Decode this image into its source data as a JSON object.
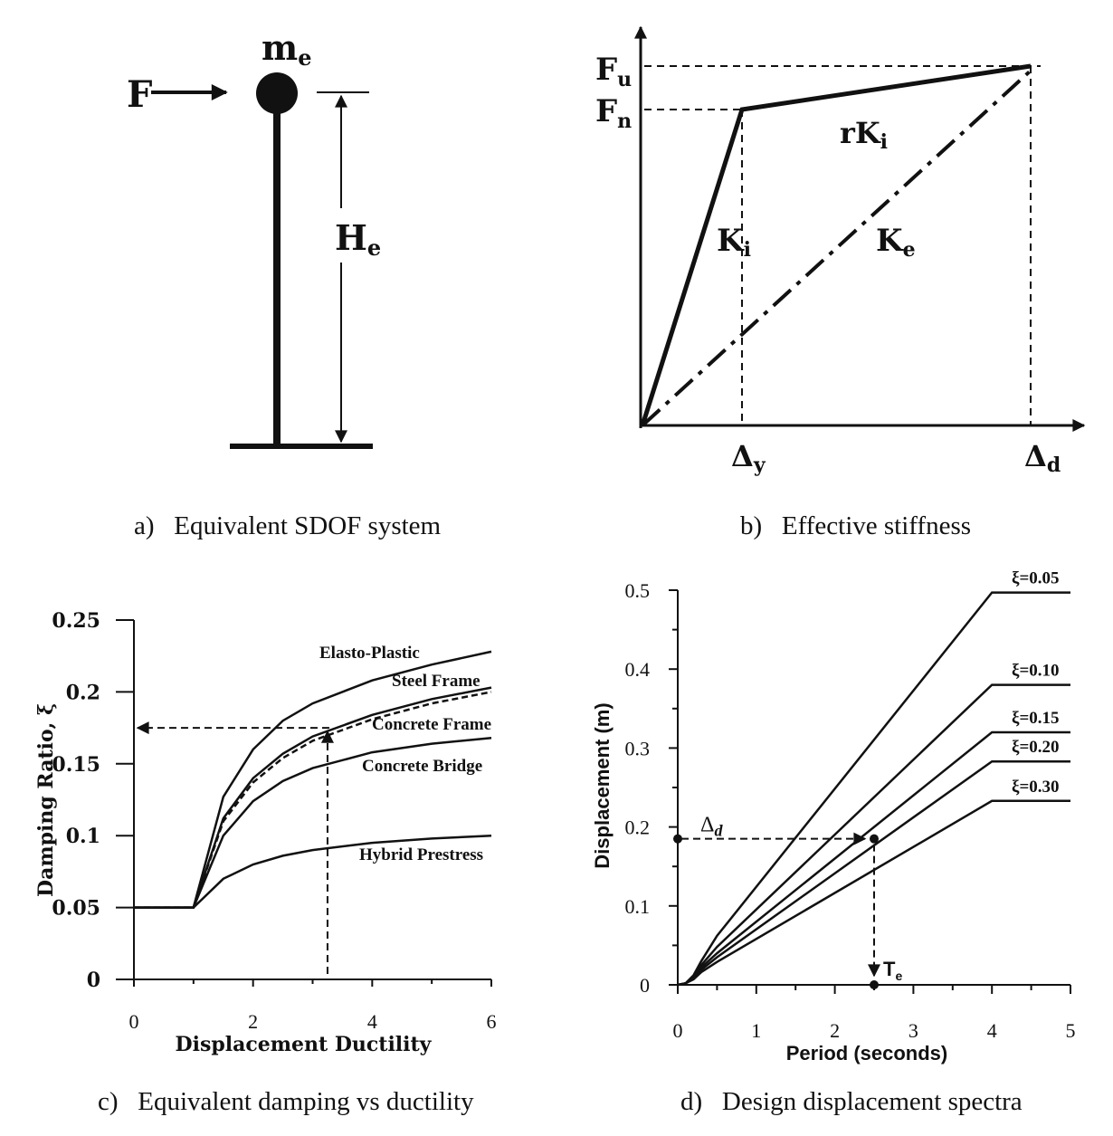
{
  "panel_a": {
    "caption": "a)  Equivalent SDOF system",
    "mass_label": "m",
    "mass_sub": "e",
    "force_label": "F",
    "height_label": "H",
    "height_sub": "e"
  },
  "panel_b": {
    "caption": "b)  Effective stiffness",
    "fu": "F",
    "fu_sub": "u",
    "fn": "F",
    "fn_sub": "n",
    "rki": "rK",
    "rki_sub": "i",
    "ki": "K",
    "ki_sub": "i",
    "ke": "K",
    "ke_sub": "e",
    "dy": "Δ",
    "dy_sub": "y",
    "dd": "Δ",
    "dd_sub": "d"
  },
  "chart_data": [
    {
      "type": "line",
      "caption": "c)  Equivalent damping vs ductility",
      "xlabel": "Displacement Ductility",
      "ylabel": "Damping Ratio, ξ",
      "xlim": [
        0,
        6
      ],
      "ylim": [
        0,
        0.25
      ],
      "xticks": [
        0,
        2,
        4,
        6
      ],
      "yticks": [
        "0",
        "0.05",
        "0.1",
        "0.15",
        "0.2",
        "0.25"
      ],
      "series": [
        {
          "name": "Elasto-Plastic",
          "x": [
            0,
            1,
            1.5,
            2,
            2.5,
            3,
            4,
            5,
            6
          ],
          "y": [
            0.05,
            0.05,
            0.127,
            0.16,
            0.18,
            0.192,
            0.208,
            0.219,
            0.228
          ]
        },
        {
          "name": "Steel Frame",
          "x": [
            0,
            1,
            1.5,
            2,
            2.5,
            3,
            4,
            5,
            6
          ],
          "y": [
            0.05,
            0.05,
            0.112,
            0.14,
            0.157,
            0.169,
            0.184,
            0.195,
            0.203
          ]
        },
        {
          "name": "Concrete Frame",
          "dashed": true,
          "x": [
            0,
            1,
            1.5,
            2,
            2.5,
            3,
            4,
            5,
            6
          ],
          "y": [
            0.05,
            0.05,
            0.11,
            0.137,
            0.154,
            0.166,
            0.181,
            0.192,
            0.2
          ]
        },
        {
          "name": "Concrete Bridge",
          "x": [
            0,
            1,
            1.5,
            2,
            2.5,
            3,
            4,
            5,
            6
          ],
          "y": [
            0.05,
            0.05,
            0.1,
            0.124,
            0.138,
            0.147,
            0.158,
            0.164,
            0.168
          ]
        },
        {
          "name": "Hybrid Prestress",
          "x": [
            0,
            1,
            1.5,
            2,
            2.5,
            3,
            4,
            5,
            6
          ],
          "y": [
            0.05,
            0.05,
            0.07,
            0.08,
            0.086,
            0.09,
            0.095,
            0.098,
            0.1
          ]
        }
      ],
      "annotation": {
        "ductility": 3.25,
        "damping": 0.175
      }
    },
    {
      "type": "line",
      "caption": "d)  Design displacement spectra",
      "xlabel": "Period (seconds)",
      "ylabel": "Displacement (m)",
      "xlim": [
        0,
        5
      ],
      "ylim": [
        0,
        0.5
      ],
      "xticks": [
        0,
        1,
        2,
        3,
        4,
        5
      ],
      "yticks": [
        "0",
        "0.1",
        "0.2",
        "0.3",
        "0.4",
        "0.5"
      ],
      "series": [
        {
          "name": "ξ=0.05",
          "x": [
            0,
            0.1,
            0.2,
            0.3,
            0.5,
            4,
            5
          ],
          "y": [
            0,
            0.002,
            0.012,
            0.03,
            0.062,
            0.497,
            0.497
          ]
        },
        {
          "name": "ξ=0.10",
          "x": [
            0,
            0.1,
            0.2,
            0.3,
            0.5,
            4,
            5
          ],
          "y": [
            0,
            0.002,
            0.01,
            0.025,
            0.048,
            0.38,
            0.38
          ]
        },
        {
          "name": "ξ=0.15",
          "x": [
            0,
            0.1,
            0.2,
            0.3,
            0.5,
            4,
            5
          ],
          "y": [
            0,
            0.002,
            0.009,
            0.022,
            0.04,
            0.32,
            0.32
          ]
        },
        {
          "name": "ξ=0.20",
          "x": [
            0,
            0.1,
            0.2,
            0.3,
            0.5,
            4,
            5
          ],
          "y": [
            0,
            0.002,
            0.008,
            0.019,
            0.035,
            0.283,
            0.283
          ]
        },
        {
          "name": "ξ=0.30",
          "x": [
            0,
            0.1,
            0.2,
            0.3,
            0.5,
            4,
            5
          ],
          "y": [
            0,
            0.002,
            0.007,
            0.016,
            0.029,
            0.233,
            0.233
          ]
        }
      ],
      "annotation": {
        "delta_label": "Δ",
        "delta_sub": "d",
        "te_label": "T",
        "te_sub": "e",
        "displacement": 0.185,
        "period": 2.5
      }
    }
  ]
}
